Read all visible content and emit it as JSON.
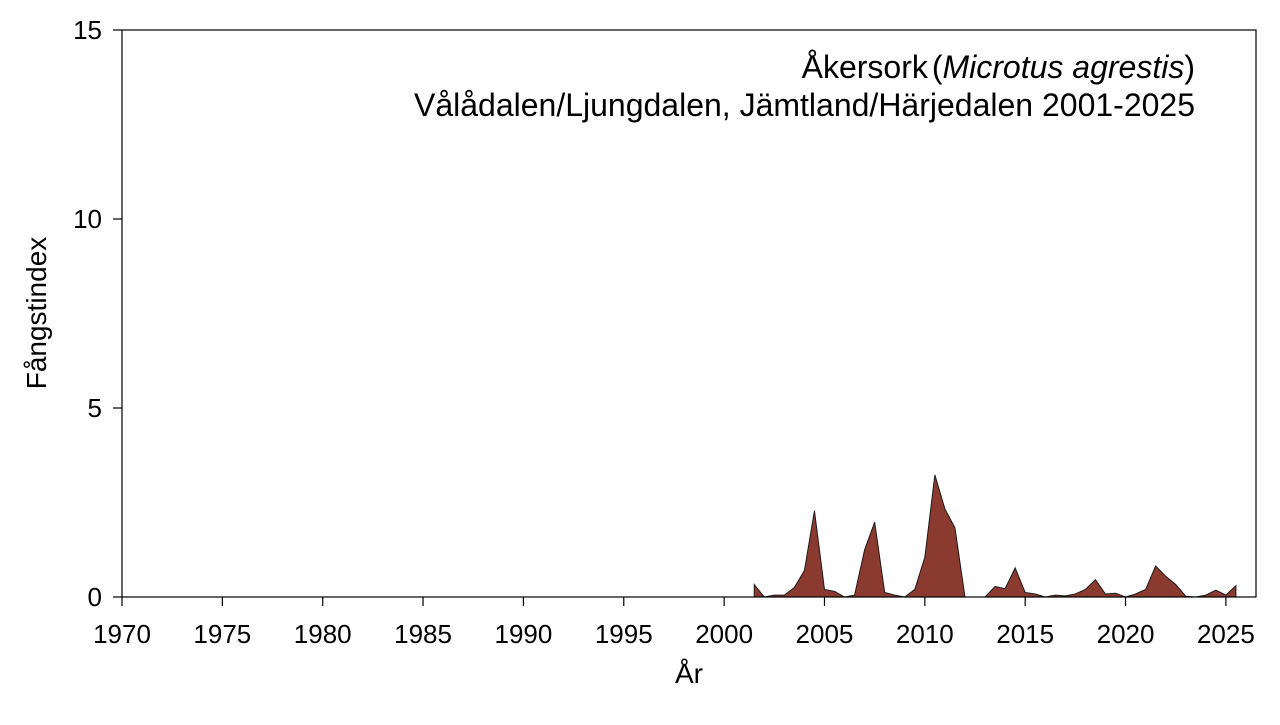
{
  "chart_data": {
    "type": "area",
    "title_common": "Åkersork",
    "title_latin": "Microtus agrestis",
    "subtitle": "Vålådalen/Ljungdalen, Jämtland/Härjedalen 2001-2025",
    "xlabel": "År",
    "ylabel": "Fångstindex",
    "xlim": [
      1970,
      2026.5
    ],
    "ylim": [
      0,
      15
    ],
    "x_ticks": [
      1970,
      1975,
      1980,
      1985,
      1990,
      1995,
      2000,
      2005,
      2010,
      2015,
      2020,
      2025
    ],
    "y_ticks": [
      0,
      5,
      10,
      15
    ],
    "grid": false,
    "fill_color": "#8B3A2F",
    "line_color": "#1a1a1a",
    "series": [
      {
        "x": [
          2001.5,
          2002.0,
          2002.5,
          2003.0,
          2003.5,
          2004.0,
          2004.5,
          2005.0,
          2005.5,
          2006.0,
          2006.5,
          2007.0,
          2007.5,
          2008.0,
          2008.5,
          2009.0,
          2009.5,
          2010.0,
          2010.5,
          2011.0,
          2011.5,
          2012.0,
          2012.5,
          2013.0,
          2013.5,
          2014.0,
          2014.5,
          2015.0,
          2015.5,
          2016.0,
          2016.5,
          2017.0,
          2017.5,
          2018.0,
          2018.5,
          2019.0,
          2019.5,
          2020.0,
          2020.5,
          2021.0,
          2021.5,
          2022.0,
          2022.5,
          2023.0,
          2023.5,
          2024.0,
          2024.5,
          2025.0,
          2025.5
        ],
        "values": [
          0.33,
          0.0,
          0.05,
          0.05,
          0.25,
          0.7,
          2.28,
          0.2,
          0.15,
          0.0,
          0.05,
          1.25,
          1.98,
          0.12,
          0.05,
          0.0,
          0.2,
          1.05,
          3.23,
          2.33,
          1.83,
          0.0,
          0.0,
          0.0,
          0.28,
          0.22,
          0.77,
          0.12,
          0.08,
          0.0,
          0.05,
          0.03,
          0.08,
          0.2,
          0.46,
          0.08,
          0.1,
          0.0,
          0.08,
          0.2,
          0.82,
          0.55,
          0.33,
          0.02,
          0.0,
          0.05,
          0.18,
          0.05,
          0.3
        ]
      }
    ]
  }
}
